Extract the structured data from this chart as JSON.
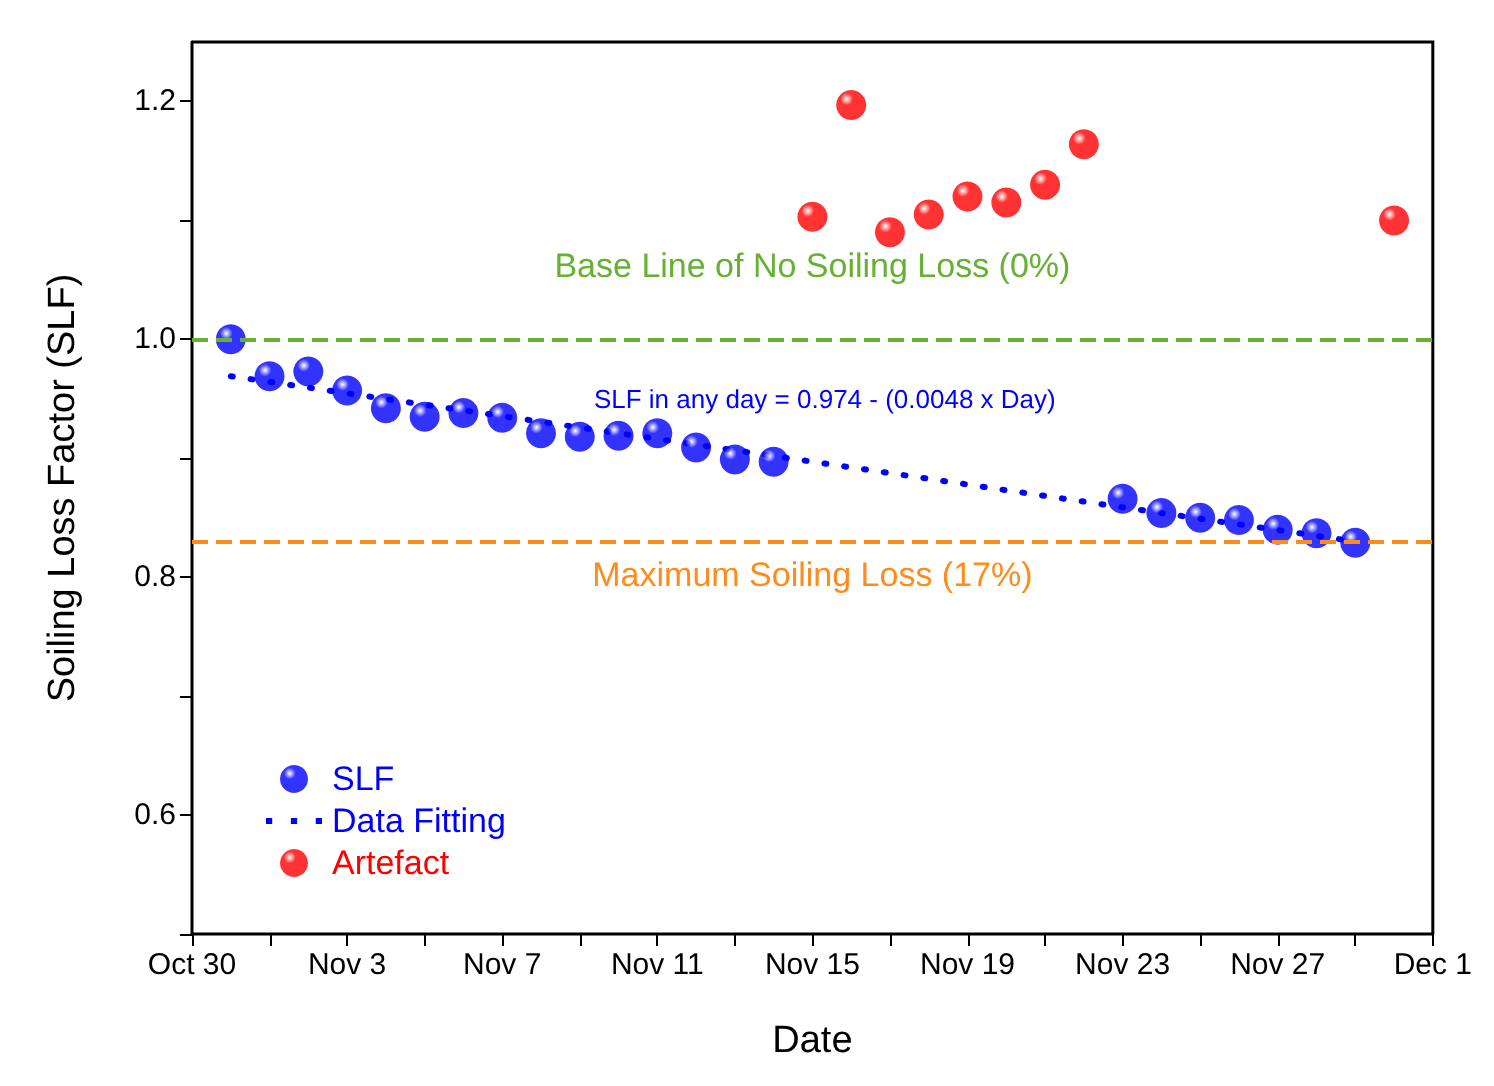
{
  "chart_data": {
    "type": "scatter",
    "xlabel": "Date",
    "ylabel": "Soiling Loss Factor (SLF)",
    "xlim": [
      "--10-30",
      "--12-01"
    ],
    "xticks": [
      {
        "value": "--10-30",
        "label": "Oct 30"
      },
      {
        "value": "--11-01",
        "label": null
      },
      {
        "value": "--11-03",
        "label": "Nov 3"
      },
      {
        "value": "--11-05",
        "label": null
      },
      {
        "value": "--11-07",
        "label": "Nov 7"
      },
      {
        "value": "--11-09",
        "label": null
      },
      {
        "value": "--11-11",
        "label": "Nov 11"
      },
      {
        "value": "--11-13",
        "label": null
      },
      {
        "value": "--11-15",
        "label": "Nov 15"
      },
      {
        "value": "--11-17",
        "label": null
      },
      {
        "value": "--11-19",
        "label": "Nov 19"
      },
      {
        "value": "--11-21",
        "label": null
      },
      {
        "value": "--11-23",
        "label": "Nov 23"
      },
      {
        "value": "--11-25",
        "label": null
      },
      {
        "value": "--11-27",
        "label": "Nov 27"
      },
      {
        "value": "--11-29",
        "label": null
      },
      {
        "value": "--12-01",
        "label": "Dec 1"
      }
    ],
    "ylim": [
      0.5,
      1.25
    ],
    "yticks": [
      {
        "value": 0.5,
        "label": null
      },
      0.6,
      {
        "value": 0.7,
        "label": null
      },
      0.8,
      {
        "value": 0.9,
        "label": null
      },
      {
        "value": 1,
        "label": "1.0"
      },
      {
        "value": 1.1,
        "label": null
      },
      1.2
    ],
    "marker": "circle",
    "legend": "bottom left",
    "grid": false,
    "series": [
      {
        "name": "SLF",
        "color": "#0000ff",
        "x": [
          "--10-31",
          "--11-01",
          "--11-02",
          "--11-03",
          "--11-04",
          "--11-05",
          "--11-06",
          "--11-07",
          "--11-08",
          "--11-09",
          "--11-10",
          "--11-11",
          "--11-12",
          "--11-13",
          "--11-14",
          "--11-23",
          "--11-24",
          "--11-25",
          "--11-26",
          "--11-27",
          "--11-28",
          "--11-29"
        ],
        "values": [
          1.0,
          0.969,
          0.973,
          0.957,
          0.942,
          0.935,
          0.938,
          0.934,
          0.921,
          0.918,
          0.919,
          0.921,
          0.909,
          0.899,
          0.897,
          0.866,
          0.854,
          0.85,
          0.848,
          0.84,
          0.837,
          0.829
        ]
      },
      {
        "name": "Data Fitting",
        "type": "line",
        "color": "#0000ff",
        "marker": "none",
        "line_style": "dotted",
        "x": [
          "--10-31",
          "--11-29"
        ],
        "values": [
          0.969,
          0.83
        ]
      },
      {
        "name": "Artefact",
        "color": "#ff0000",
        "x": [
          "--11-15",
          "--11-16",
          "--11-17",
          "--11-18",
          "--11-19",
          "--11-20",
          "--11-21",
          "--11-22",
          "--11-30"
        ],
        "values": [
          1.103,
          1.197,
          1.09,
          1.105,
          1.12,
          1.115,
          1.13,
          1.164,
          1.1
        ]
      }
    ],
    "ref_lines": [
      {
        "axis": "y",
        "value": 1.0,
        "label": "Base Line of No Soiling Loss (0%)",
        "color": "#66b032",
        "line_style": "dashed"
      },
      {
        "axis": "y",
        "value": 0.83,
        "label": "Maximum Soiling Loss (17%)",
        "color": "#ff8c1a",
        "line_style": "dashed"
      }
    ],
    "annotations": [
      "SLF in any day = 0.974 - (0.0048 x Day)"
    ]
  }
}
